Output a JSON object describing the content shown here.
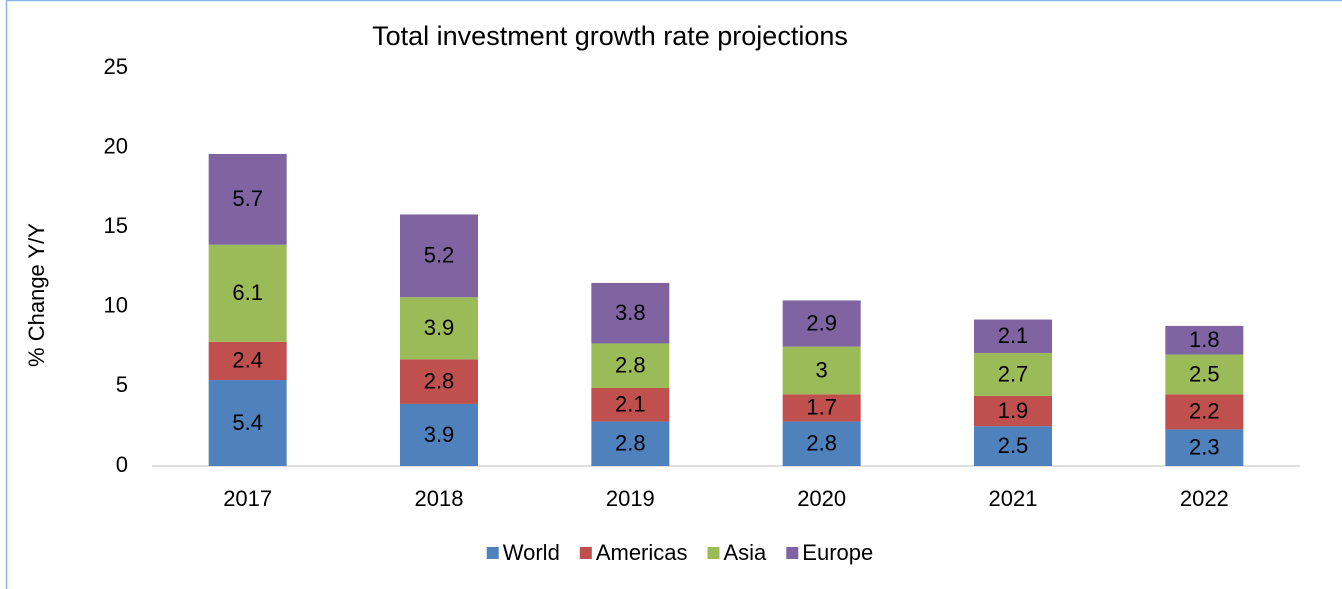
{
  "chart_data": {
    "type": "stacked_bar",
    "title": "Total investment growth rate projections",
    "ylabel": "% Change Y/Y",
    "categories": [
      "2017",
      "2018",
      "2019",
      "2020",
      "2021",
      "2022"
    ],
    "series": [
      {
        "name": "World",
        "color": "#4f81bd",
        "values": [
          5.4,
          3.9,
          2.8,
          2.8,
          2.5,
          2.3
        ]
      },
      {
        "name": "Americas",
        "color": "#c0504d",
        "values": [
          2.4,
          2.8,
          2.1,
          1.7,
          1.9,
          2.2
        ]
      },
      {
        "name": "Asia",
        "color": "#9bbb59",
        "values": [
          6.1,
          3.9,
          2.8,
          3,
          2.7,
          2.5
        ]
      },
      {
        "name": "Europe",
        "color": "#8064a2",
        "values": [
          5.7,
          5.2,
          3.8,
          2.9,
          2.1,
          1.8
        ]
      }
    ],
    "ylim": [
      0,
      25
    ],
    "yticks": [
      0,
      5,
      10,
      15,
      20,
      25
    ],
    "grid": false,
    "legend": "bottom"
  }
}
